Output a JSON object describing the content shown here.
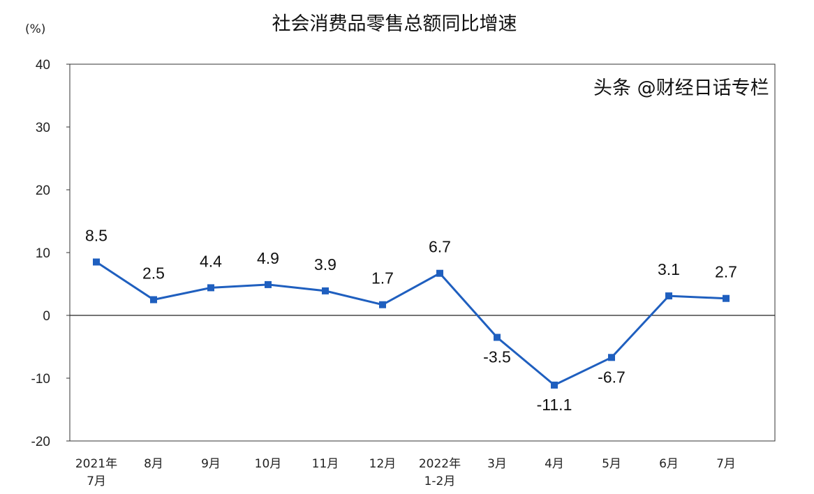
{
  "chart_data": {
    "type": "line",
    "title": "社会消费品零售总额同比增速",
    "ylabel": "(%)",
    "xlabel": "",
    "categories": [
      [
        "2021年",
        "7月"
      ],
      [
        "8月"
      ],
      [
        "9月"
      ],
      [
        "10月"
      ],
      [
        "11月"
      ],
      [
        "12月"
      ],
      [
        "2022年",
        "1-2月"
      ],
      [
        "3月"
      ],
      [
        "4月"
      ],
      [
        "5月"
      ],
      [
        "6月"
      ],
      [
        "7月"
      ]
    ],
    "values": [
      8.5,
      2.5,
      4.4,
      4.9,
      3.9,
      1.7,
      6.7,
      -3.5,
      -11.1,
      -6.7,
      3.1,
      2.7
    ],
    "data_labels": [
      "8.5",
      "2.5",
      "4.4",
      "4.9",
      "3.9",
      "1.7",
      "6.7",
      "-3.5",
      "-11.1",
      "-6.7",
      "3.1",
      "2.7"
    ],
    "ylim": [
      -20,
      40
    ],
    "yticks": [
      40,
      30,
      20,
      10,
      0,
      -10,
      -20
    ],
    "grid": false,
    "legend": "none",
    "color": "#1f5fbf"
  },
  "watermark": "头条 @财经日话专栏"
}
